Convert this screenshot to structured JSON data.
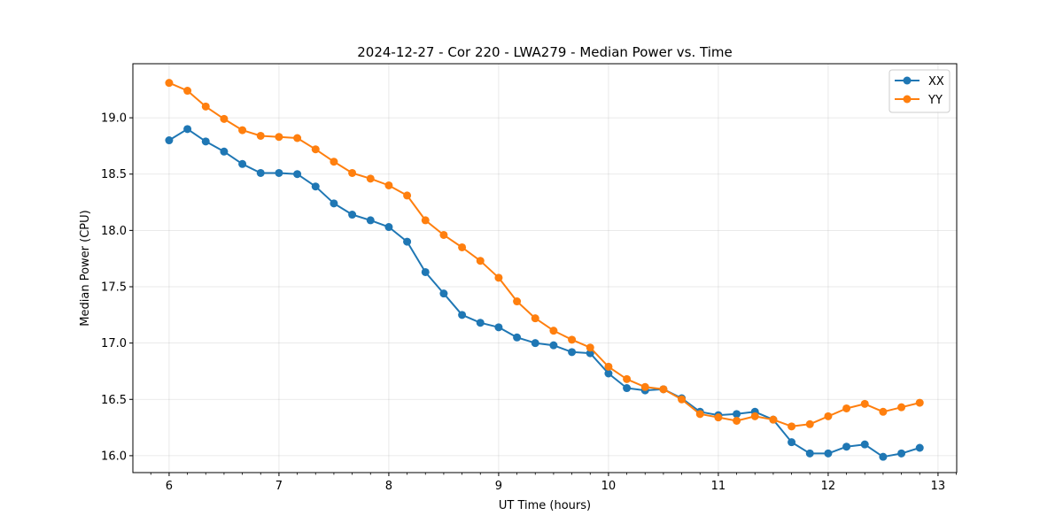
{
  "chart_data": {
    "type": "line",
    "title": "2024-12-27 - Cor 220 - LWA279 - Median Power vs. Time",
    "xlabel": "UT Time (hours)",
    "ylabel": "Median Power (CPU)",
    "xlim": [
      5.67,
      13.17
    ],
    "ylim": [
      15.85,
      19.48
    ],
    "xticks": [
      6,
      7,
      8,
      9,
      10,
      11,
      12,
      13
    ],
    "xtick_labels": [
      "6",
      "7",
      "8",
      "9",
      "10",
      "11",
      "12",
      "13"
    ],
    "yticks": [
      16.0,
      16.5,
      17.0,
      17.5,
      18.0,
      18.5,
      19.0
    ],
    "ytick_labels": [
      "16.0",
      "16.5",
      "17.0",
      "17.5",
      "18.0",
      "18.5",
      "19.0"
    ],
    "grid": true,
    "legend_position": "top-right",
    "x": [
      6.0,
      6.1667,
      6.3333,
      6.5,
      6.6667,
      6.8333,
      7.0,
      7.1667,
      7.3333,
      7.5,
      7.6667,
      7.8333,
      8.0,
      8.1667,
      8.3333,
      8.5,
      8.6667,
      8.8333,
      9.0,
      9.1667,
      9.3333,
      9.5,
      9.6667,
      9.8333,
      10.0,
      10.1667,
      10.3333,
      10.5,
      10.6667,
      10.8333,
      11.0,
      11.1667,
      11.3333,
      11.5,
      11.6667,
      11.8333,
      12.0,
      12.1667,
      12.3333,
      12.5,
      12.6667,
      12.8333
    ],
    "series": [
      {
        "name": "XX",
        "color": "#1f77b4",
        "values": [
          18.8,
          18.9,
          18.79,
          18.7,
          18.59,
          18.51,
          18.51,
          18.5,
          18.39,
          18.24,
          18.14,
          18.09,
          18.03,
          17.9,
          17.63,
          17.44,
          17.25,
          17.18,
          17.14,
          17.05,
          17.0,
          16.98,
          16.92,
          16.91,
          16.73,
          16.6,
          16.58,
          16.59,
          16.51,
          16.39,
          16.36,
          16.37,
          16.39,
          16.32,
          16.12,
          16.02,
          16.02,
          16.08,
          16.1,
          15.99,
          16.02,
          16.07
        ]
      },
      {
        "name": "YY",
        "color": "#ff7f0e",
        "values": [
          19.31,
          19.24,
          19.1,
          18.99,
          18.89,
          18.84,
          18.83,
          18.82,
          18.72,
          18.61,
          18.51,
          18.46,
          18.4,
          18.31,
          18.09,
          17.96,
          17.85,
          17.73,
          17.58,
          17.37,
          17.22,
          17.11,
          17.03,
          16.96,
          16.79,
          16.68,
          16.61,
          16.59,
          16.5,
          16.37,
          16.34,
          16.31,
          16.35,
          16.32,
          16.26,
          16.28,
          16.35,
          16.42,
          16.46,
          16.39,
          16.43,
          16.47
        ]
      }
    ]
  }
}
